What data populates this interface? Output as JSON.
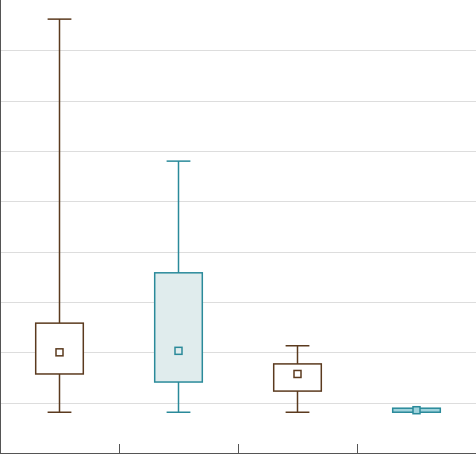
{
  "chart_data": {
    "type": "box",
    "categories": [
      null,
      null,
      null,
      null
    ],
    "series": [
      {
        "color": "#5b3a1e",
        "fill": "#ffffff",
        "min": 0.81,
        "q1": 1.57,
        "mean": 2.0,
        "q3": 2.58,
        "max": 8.62
      },
      {
        "color": "#2a8a9a",
        "fill": "#e0eced",
        "min": 0.81,
        "q1": 1.41,
        "mean": 2.03,
        "q3": 3.58,
        "max": 5.8
      },
      {
        "color": "#5b3a1e",
        "fill": "#ffffff",
        "min": 0.81,
        "q1": 1.23,
        "mean": 1.57,
        "q3": 1.77,
        "max": 2.13
      },
      {
        "color": "#2a8a9a",
        "fill": "#9fd3dc",
        "min": 0.81,
        "q1": 0.81,
        "mean": 0.85,
        "q3": 0.89,
        "max": 0.89
      }
    ],
    "ylim": [
      0,
      9
    ],
    "yticks": [
      1,
      2,
      3,
      4,
      5,
      6,
      7,
      8
    ],
    "grid": true
  }
}
